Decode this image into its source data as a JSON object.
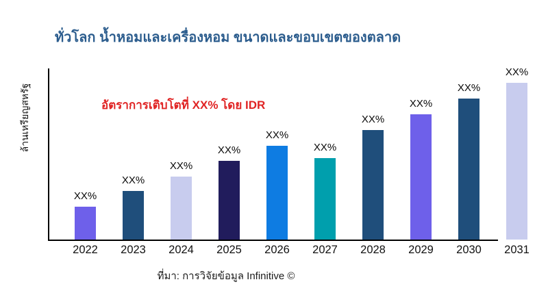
{
  "page": {
    "background": "#ffffff"
  },
  "header": {
    "title": "ทั่วโลก น้ำหอมและเครื่องหอม ขนาดและขอบเขตของตลาด",
    "title_color": "#2b5c8d"
  },
  "annotation": {
    "text": "อัตราการเติบโตที่ XX% โดย IDR",
    "color": "#e02424"
  },
  "footer": {
    "source": "ที่มา: การวิจัยข้อมูล Infinitive ©"
  },
  "chart_data": {
    "type": "bar",
    "title": "ทั่วโลก น้ำหอมและเครื่องหอม ขนาดและขอบเขตของตลาด",
    "categories": [
      "2022",
      "2023",
      "2024",
      "2025",
      "2026",
      "2027",
      "2028",
      "2029",
      "2030",
      "2031"
    ],
    "values": [
      21,
      31,
      40,
      50,
      60,
      52,
      70,
      80,
      90,
      100
    ],
    "values_note": "relative bar heights (0-100 scale); actual values masked on chart as XX%",
    "value_labels": [
      "XX%",
      "XX%",
      "XX%",
      "XX%",
      "XX%",
      "XX%",
      "XX%",
      "XX%",
      "XX%",
      "XX%"
    ],
    "bar_colors": [
      "#6e60ea",
      "#1f4e7b",
      "#c8ccee",
      "#211c5c",
      "#0e7ce2",
      "#009fad",
      "#1f4e7b",
      "#6e60ea",
      "#1f4e7b",
      "#c8ccee"
    ],
    "xlabel": "",
    "ylabel": "ล้านเหรียญสหรัฐ",
    "ylim": [
      0,
      110
    ],
    "grid": false,
    "legend": false,
    "axis_color": "#000000",
    "annotation": "อัตราการเติบโตที่ XX% โดย IDR"
  }
}
